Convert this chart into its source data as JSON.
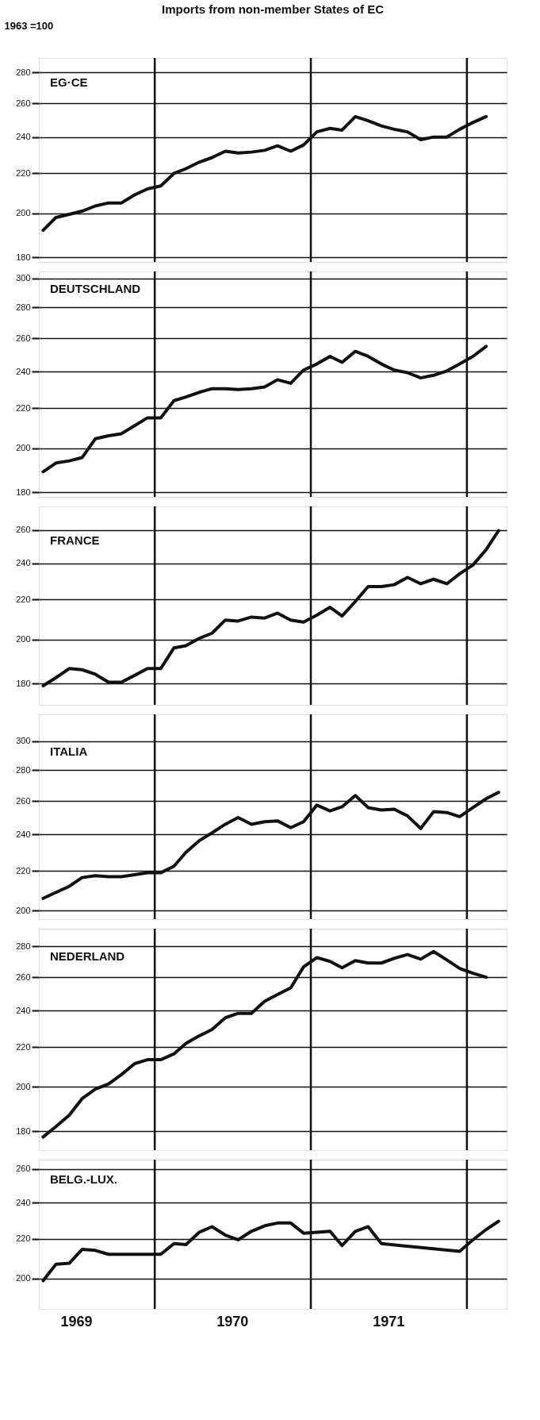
{
  "chart_data": [
    {
      "type": "line",
      "title": "EG·CE",
      "ylabel": "1963 =100",
      "annotations": [
        "Imports from non-member States of EC"
      ],
      "series": [
        {
          "color": "#111111",
          "x": [
            "1969-04-15",
            "1969-05-15",
            "1969-06-15",
            "1969-07-15",
            "1969-08-15",
            "1969-09-15",
            "1969-10-15",
            "1969-11-15",
            "1969-12-15",
            "1970-01-15",
            "1970-02-15",
            "1970-03-15",
            "1970-04-15",
            "1970-05-15",
            "1970-06-15",
            "1970-07-15",
            "1970-08-15",
            "1970-09-15",
            "1970-10-15",
            "1970-11-15",
            "1970-12-15",
            "1971-01-15",
            "1971-02-15",
            "1971-03-15",
            "1971-04-15",
            "1971-05-15",
            "1971-06-15",
            "1971-07-15",
            "1971-08-15",
            "1971-09-15",
            "1971-10-15",
            "1971-11-15",
            "1971-12-15",
            "1972-01-15",
            "1972-02-15"
          ],
          "values": [
            192,
            198,
            199.5,
            201,
            203.5,
            205,
            205,
            209,
            212,
            213.5,
            220,
            222.5,
            226,
            228.5,
            232,
            231,
            231.5,
            232.5,
            235,
            232,
            235.5,
            243,
            245,
            244,
            252,
            249.5,
            246.5,
            244.5,
            243,
            238.5,
            240,
            240,
            244.5,
            248.5,
            252
          ]
        }
      ],
      "ylim": [
        178,
        290
      ],
      "yticks": [
        180,
        200,
        220,
        240,
        260,
        280
      ],
      "log": true,
      "grid": "y",
      "tick_labels": "y",
      "xlim": [
        "1969-04-05",
        "1972-04-03"
      ],
      "ref_lines": [
        {
          "axis": "x",
          "value": "1970-01-01",
          "label": null
        },
        {
          "axis": "x",
          "value": "1971-01-01",
          "label": null
        },
        {
          "axis": "x",
          "value": "1972-01-01",
          "label": null
        }
      ]
    },
    {
      "type": "line",
      "title": "DEUTSCHLAND",
      "series": [
        {
          "color": "#111111",
          "x": [
            "1969-04-15",
            "1969-05-15",
            "1969-06-15",
            "1969-07-15",
            "1969-08-15",
            "1969-09-15",
            "1969-10-15",
            "1969-11-15",
            "1969-12-15",
            "1970-01-15",
            "1970-02-15",
            "1970-03-15",
            "1970-04-15",
            "1970-05-15",
            "1970-06-15",
            "1970-07-15",
            "1970-08-15",
            "1970-09-15",
            "1970-10-15",
            "1970-11-15",
            "1970-12-15",
            "1971-01-15",
            "1971-02-15",
            "1971-03-15",
            "1971-04-15",
            "1971-05-15",
            "1971-06-15",
            "1971-07-15",
            "1971-08-15",
            "1971-09-15",
            "1971-10-15",
            "1971-11-15",
            "1971-12-15",
            "1972-01-15",
            "1972-02-15"
          ],
          "values": [
            189,
            193,
            194,
            195.5,
            204.5,
            206,
            207,
            211,
            215,
            215,
            224,
            226,
            228.5,
            230.5,
            230.5,
            230,
            230.5,
            231.5,
            235.5,
            233.5,
            241,
            244.5,
            249,
            245.5,
            252,
            249,
            244.5,
            241,
            239.5,
            236.5,
            238,
            240.5,
            244.5,
            249,
            255
          ]
        }
      ],
      "ylim": [
        178,
        305
      ],
      "yticks": [
        180,
        200,
        220,
        240,
        260,
        280,
        300
      ],
      "log": true,
      "grid": "y",
      "tick_labels": "y",
      "xlim": [
        "1969-04-05",
        "1972-04-03"
      ],
      "ref_lines": [
        {
          "axis": "x",
          "value": "1970-01-01",
          "label": null
        },
        {
          "axis": "x",
          "value": "1971-01-01",
          "label": null
        },
        {
          "axis": "x",
          "value": "1972-01-01",
          "label": null
        }
      ]
    },
    {
      "type": "line",
      "title": "FRANCE",
      "series": [
        {
          "color": "#111111",
          "x": [
            "1969-04-15",
            "1969-05-15",
            "1969-06-15",
            "1969-07-15",
            "1969-08-15",
            "1969-09-15",
            "1969-10-15",
            "1969-11-15",
            "1969-12-15",
            "1970-01-15",
            "1970-02-15",
            "1970-03-15",
            "1970-04-15",
            "1970-05-15",
            "1970-06-15",
            "1970-07-15",
            "1970-08-15",
            "1970-09-15",
            "1970-10-15",
            "1970-11-15",
            "1970-12-15",
            "1971-01-15",
            "1971-02-15",
            "1971-03-15",
            "1971-04-15",
            "1971-05-15",
            "1971-06-15",
            "1971-07-15",
            "1971-08-15",
            "1971-09-15",
            "1971-10-15",
            "1971-11-15",
            "1971-12-15",
            "1972-01-15",
            "1972-02-15",
            "1972-03-15"
          ],
          "values": [
            179,
            182.5,
            186.5,
            186,
            184,
            180.5,
            180.5,
            183.5,
            186.5,
            186.5,
            196,
            197,
            200.5,
            203,
            209.5,
            209,
            211,
            210.5,
            213,
            209.5,
            208.5,
            212,
            216,
            211.5,
            219,
            227,
            227,
            228,
            232,
            228.5,
            231,
            228.5,
            234,
            239,
            248,
            259.5
          ]
        }
      ],
      "ylim": [
        171,
        275
      ],
      "yticks": [
        180,
        200,
        220,
        240,
        260
      ],
      "log": true,
      "grid": "y",
      "tick_labels": "y",
      "xlim": [
        "1969-04-05",
        "1972-04-03"
      ],
      "ref_lines": [
        {
          "axis": "x",
          "value": "1970-01-01",
          "label": null
        },
        {
          "axis": "x",
          "value": "1971-01-01",
          "label": null
        },
        {
          "axis": "x",
          "value": "1972-01-01",
          "label": null
        }
      ]
    },
    {
      "type": "line",
      "title": "ITALIA",
      "series": [
        {
          "color": "#111111",
          "x": [
            "1969-04-15",
            "1969-05-15",
            "1969-06-15",
            "1969-07-15",
            "1969-08-15",
            "1969-09-15",
            "1969-10-15",
            "1969-11-15",
            "1969-12-15",
            "1970-01-15",
            "1970-02-15",
            "1970-03-15",
            "1970-04-15",
            "1970-05-15",
            "1970-06-15",
            "1970-07-15",
            "1970-08-15",
            "1970-09-15",
            "1970-10-15",
            "1970-11-15",
            "1970-12-15",
            "1971-01-15",
            "1971-02-15",
            "1971-03-15",
            "1971-04-15",
            "1971-05-15",
            "1971-06-15",
            "1971-07-15",
            "1971-08-15",
            "1971-09-15",
            "1971-10-15",
            "1971-11-15",
            "1971-12-15",
            "1972-01-15",
            "1972-02-15",
            "1972-03-15"
          ],
          "values": [
            206,
            209,
            212,
            216.5,
            217.5,
            217,
            217,
            218,
            219,
            219,
            222.5,
            230,
            236.5,
            241,
            246,
            250,
            246,
            247.5,
            248,
            244,
            247.5,
            257.5,
            254,
            256.5,
            263.5,
            256,
            254.5,
            255,
            251,
            243.5,
            253.5,
            253,
            250.5,
            256,
            261.5,
            265.5
          ]
        }
      ],
      "ylim": [
        196,
        320
      ],
      "yticks": [
        200,
        220,
        240,
        260,
        280,
        300
      ],
      "log": true,
      "grid": "y",
      "tick_labels": "y",
      "xlim": [
        "1969-04-05",
        "1972-04-03"
      ],
      "ref_lines": [
        {
          "axis": "x",
          "value": "1970-01-01",
          "label": null
        },
        {
          "axis": "x",
          "value": "1971-01-01",
          "label": null
        },
        {
          "axis": "x",
          "value": "1972-01-01",
          "label": null
        }
      ]
    },
    {
      "type": "line",
      "title": "NEDERLAND",
      "series": [
        {
          "color": "#111111",
          "x": [
            "1969-04-15",
            "1969-05-15",
            "1969-06-15",
            "1969-07-15",
            "1969-08-15",
            "1969-09-15",
            "1969-10-15",
            "1969-11-15",
            "1969-12-15",
            "1970-01-15",
            "1970-02-15",
            "1970-03-15",
            "1970-04-15",
            "1970-05-15",
            "1970-06-15",
            "1970-07-15",
            "1970-08-15",
            "1970-09-15",
            "1970-10-15",
            "1970-11-15",
            "1970-12-15",
            "1971-01-15",
            "1971-02-15",
            "1971-03-15",
            "1971-04-15",
            "1971-05-15",
            "1971-06-15",
            "1971-07-15",
            "1971-08-15",
            "1971-09-15",
            "1971-10-15",
            "1971-11-15",
            "1971-12-15",
            "1972-01-15",
            "1972-02-15"
          ],
          "values": [
            177.5,
            182,
            187,
            194.5,
            199,
            201.5,
            206,
            211.5,
            213.5,
            213.5,
            216.5,
            222,
            226,
            229.5,
            236,
            238.5,
            238.5,
            245.5,
            249.5,
            253.5,
            266.5,
            272.5,
            270,
            266,
            270.5,
            269,
            269,
            272,
            274.5,
            271.5,
            276.5,
            271,
            265.5,
            262.5,
            260
          ]
        }
      ],
      "ylim": [
        172,
        292
      ],
      "yticks": [
        180,
        200,
        220,
        240,
        260,
        280
      ],
      "log": true,
      "grid": "y",
      "tick_labels": "y",
      "xlim": [
        "1969-04-05",
        "1972-04-03"
      ],
      "ref_lines": [
        {
          "axis": "x",
          "value": "1970-01-01",
          "label": null
        },
        {
          "axis": "x",
          "value": "1971-01-01",
          "label": null
        },
        {
          "axis": "x",
          "value": "1972-01-01",
          "label": null
        }
      ]
    },
    {
      "type": "line",
      "title": "BELG.-LUX.",
      "series": [
        {
          "color": "#111111",
          "x": [
            "1969-04-15",
            "1969-05-15",
            "1969-06-15",
            "1969-07-15",
            "1969-08-15",
            "1969-09-15",
            "1969-10-15",
            "1969-11-15",
            "1969-12-15",
            "1970-01-15",
            "1970-02-15",
            "1970-03-15",
            "1970-04-15",
            "1970-05-15",
            "1970-06-15",
            "1970-07-15",
            "1970-08-15",
            "1970-09-15",
            "1970-10-15",
            "1970-11-15",
            "1970-12-15",
            "1971-01-15",
            "1971-02-15",
            "1971-03-15",
            "1971-04-15",
            "1971-05-15",
            "1971-06-15",
            "1971-12-15",
            "1972-01-15",
            "1972-02-15",
            "1972-03-15"
          ],
          "values": [
            199,
            207,
            207.5,
            214.5,
            214,
            212,
            212,
            212,
            212,
            212,
            217.5,
            217,
            223.5,
            226.5,
            222,
            219.5,
            224,
            227,
            228.5,
            228.5,
            223,
            223.5,
            224,
            216.5,
            224,
            226.5,
            217.5,
            213.5,
            219.5,
            225,
            229.5
          ]
        }
      ],
      "ylim": [
        186,
        266
      ],
      "yticks": [
        200,
        220,
        240,
        260
      ],
      "log": true,
      "grid": "y",
      "xlim": [
        "1969-04-05",
        "1972-04-03"
      ],
      "xticks": [
        {
          "value": "1969-07-02",
          "label": "1969"
        },
        {
          "value": "1970-07-02",
          "label": "1970"
        },
        {
          "value": "1971-07-02",
          "label": "1971"
        }
      ],
      "ref_lines": [
        {
          "axis": "x",
          "value": "1970-01-01",
          "label": null
        },
        {
          "axis": "x",
          "value": "1971-01-01",
          "label": null
        },
        {
          "axis": "x",
          "value": "1972-01-01",
          "label": null
        }
      ]
    }
  ]
}
